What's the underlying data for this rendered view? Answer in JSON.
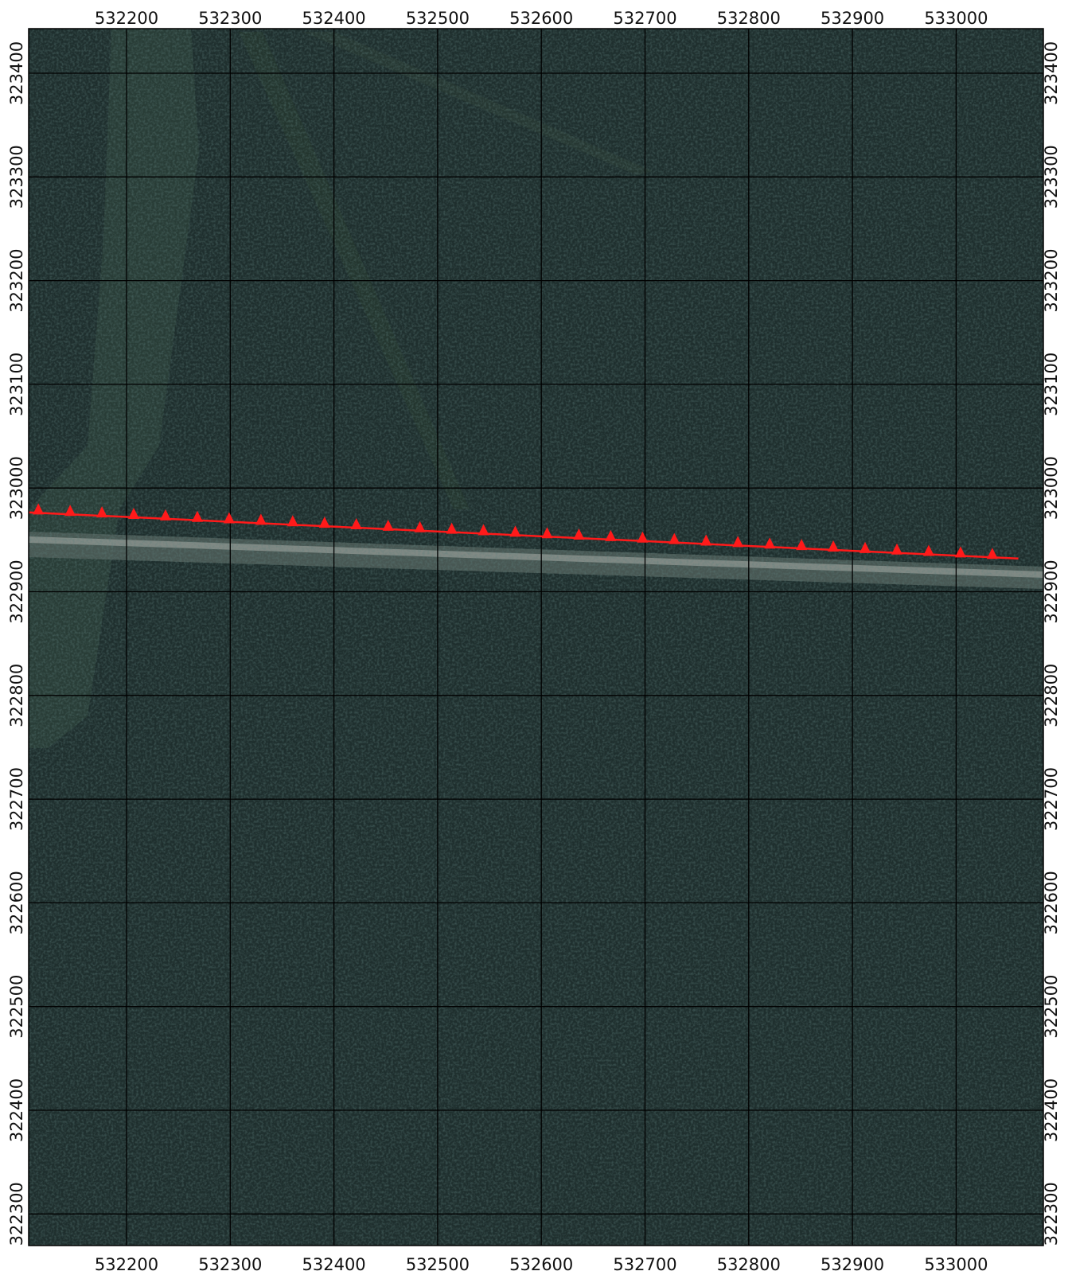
{
  "map": {
    "x_ticks": [
      "532200",
      "532300",
      "532400",
      "532500",
      "532600",
      "532700",
      "532800",
      "532900",
      "533000"
    ],
    "y_ticks": [
      "323400",
      "323300",
      "323200",
      "323100",
      "323000",
      "322900",
      "322800",
      "322700",
      "322600",
      "322500",
      "322400",
      "322300"
    ],
    "grid_color": "#000000",
    "imagery_base_color": "#1f2f2e",
    "feature": {
      "type": "line with triangle markers",
      "color": "#ff1a1a",
      "marker": "triangle-icon",
      "start": {
        "x": 532095,
        "y": 322977
      },
      "end": {
        "x": 533060,
        "y": 322932
      }
    }
  }
}
